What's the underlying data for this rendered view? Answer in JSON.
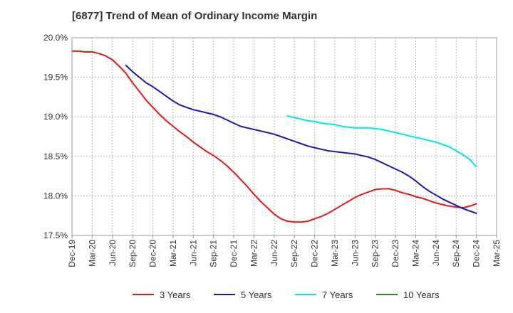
{
  "chart_data": {
    "type": "line",
    "title": "[6877]  Trend of Mean of Ordinary Income Margin",
    "xlabel": "",
    "ylabel": "",
    "x_ticks": [
      "Dec-19",
      "Mar-20",
      "Jun-20",
      "Sep-20",
      "Dec-20",
      "Mar-21",
      "Jun-21",
      "Sep-21",
      "Dec-21",
      "Mar-22",
      "Jun-22",
      "Sep-22",
      "Dec-22",
      "Mar-23",
      "Jun-23",
      "Sep-23",
      "Dec-23",
      "Mar-24",
      "Jun-24",
      "Sep-24",
      "Dec-24",
      "Mar-25"
    ],
    "y_ticks": [
      "17.5%",
      "18.0%",
      "18.5%",
      "19.0%",
      "19.5%",
      "20.0%"
    ],
    "y_tick_values": [
      17.5,
      18.0,
      18.5,
      19.0,
      19.5,
      20.0
    ],
    "ylim": [
      17.5,
      20.0
    ],
    "grid": true,
    "legend_position": "bottom",
    "series": [
      {
        "name": "3 Years",
        "color": "#e31a1c",
        "x": [
          "Dec-19",
          "Jan-20",
          "Feb-20",
          "Mar-20",
          "Apr-20",
          "May-20",
          "Jun-20",
          "Jul-20",
          "Aug-20",
          "Sep-20",
          "Oct-20",
          "Nov-20",
          "Dec-20",
          "Jan-21",
          "Feb-21",
          "Mar-21",
          "Apr-21",
          "May-21",
          "Jun-21",
          "Jul-21",
          "Aug-21",
          "Sep-21",
          "Oct-21",
          "Nov-21",
          "Dec-21",
          "Jan-22",
          "Feb-22",
          "Mar-22",
          "Apr-22",
          "May-22",
          "Jun-22",
          "Jul-22",
          "Aug-22",
          "Sep-22",
          "Oct-22",
          "Nov-22",
          "Dec-22",
          "Jan-23",
          "Feb-23",
          "Mar-23",
          "Apr-23",
          "May-23",
          "Jun-23",
          "Jul-23",
          "Aug-23",
          "Sep-23",
          "Oct-23",
          "Nov-23",
          "Dec-23",
          "Jan-24",
          "Feb-24",
          "Mar-24",
          "Apr-24",
          "May-24",
          "Jun-24",
          "Jul-24",
          "Aug-24",
          "Sep-24",
          "Oct-24",
          "Nov-24",
          "Dec-24"
        ],
        "values": [
          19.83,
          19.83,
          19.82,
          19.82,
          19.8,
          19.77,
          19.72,
          19.64,
          19.55,
          19.43,
          19.32,
          19.21,
          19.12,
          19.03,
          18.95,
          18.88,
          18.81,
          18.75,
          18.68,
          18.62,
          18.56,
          18.51,
          18.45,
          18.38,
          18.3,
          18.21,
          18.12,
          18.02,
          17.93,
          17.85,
          17.77,
          17.71,
          17.68,
          17.67,
          17.67,
          17.68,
          17.71,
          17.74,
          17.78,
          17.83,
          17.88,
          17.93,
          17.98,
          18.02,
          18.05,
          18.08,
          18.09,
          18.09,
          18.07,
          18.04,
          18.02,
          17.99,
          17.97,
          17.94,
          17.91,
          17.89,
          17.87,
          17.86,
          17.85,
          17.87,
          17.9
        ]
      },
      {
        "name": "5 Years",
        "color": "#1a1ab8",
        "x": [
          "Aug-20",
          "Sep-20",
          "Oct-20",
          "Nov-20",
          "Dec-20",
          "Jan-21",
          "Feb-21",
          "Mar-21",
          "Apr-21",
          "May-21",
          "Jun-21",
          "Jul-21",
          "Aug-21",
          "Sep-21",
          "Oct-21",
          "Nov-21",
          "Dec-21",
          "Jan-22",
          "Feb-22",
          "Mar-22",
          "Apr-22",
          "May-22",
          "Jun-22",
          "Jul-22",
          "Aug-22",
          "Sep-22",
          "Oct-22",
          "Nov-22",
          "Dec-22",
          "Jan-23",
          "Feb-23",
          "Mar-23",
          "Apr-23",
          "May-23",
          "Jun-23",
          "Jul-23",
          "Aug-23",
          "Sep-23",
          "Oct-23",
          "Nov-23",
          "Dec-23",
          "Jan-24",
          "Feb-24",
          "Mar-24",
          "Apr-24",
          "May-24",
          "Jun-24",
          "Jul-24",
          "Aug-24",
          "Sep-24",
          "Oct-24",
          "Nov-24",
          "Dec-24"
        ],
        "values": [
          19.65,
          19.57,
          19.5,
          19.43,
          19.38,
          19.32,
          19.26,
          19.2,
          19.15,
          19.12,
          19.09,
          19.07,
          19.05,
          19.03,
          19.0,
          18.96,
          18.92,
          18.88,
          18.86,
          18.84,
          18.82,
          18.8,
          18.78,
          18.75,
          18.72,
          18.69,
          18.66,
          18.63,
          18.61,
          18.59,
          18.57,
          18.56,
          18.55,
          18.54,
          18.53,
          18.51,
          18.49,
          18.46,
          18.42,
          18.38,
          18.34,
          18.3,
          18.25,
          18.19,
          18.12,
          18.06,
          18.01,
          17.96,
          17.92,
          17.88,
          17.84,
          17.81,
          17.78
        ]
      },
      {
        "name": "7 Years",
        "color": "#00e5ee",
        "x": [
          "Aug-22",
          "Sep-22",
          "Oct-22",
          "Nov-22",
          "Dec-22",
          "Jan-23",
          "Feb-23",
          "Mar-23",
          "Apr-23",
          "May-23",
          "Jun-23",
          "Jul-23",
          "Aug-23",
          "Sep-23",
          "Oct-23",
          "Nov-23",
          "Dec-23",
          "Jan-24",
          "Feb-24",
          "Mar-24",
          "Apr-24",
          "May-24",
          "Jun-24",
          "Jul-24",
          "Aug-24",
          "Sep-24",
          "Oct-24",
          "Nov-24",
          "Dec-24"
        ],
        "values": [
          19.01,
          18.99,
          18.97,
          18.95,
          18.94,
          18.92,
          18.91,
          18.9,
          18.88,
          18.87,
          18.86,
          18.86,
          18.86,
          18.85,
          18.84,
          18.82,
          18.8,
          18.78,
          18.76,
          18.74,
          18.72,
          18.7,
          18.68,
          18.65,
          18.62,
          18.57,
          18.52,
          18.46,
          18.37
        ]
      },
      {
        "name": "10 Years",
        "color": "#2e8b22",
        "x": [],
        "values": []
      }
    ]
  }
}
